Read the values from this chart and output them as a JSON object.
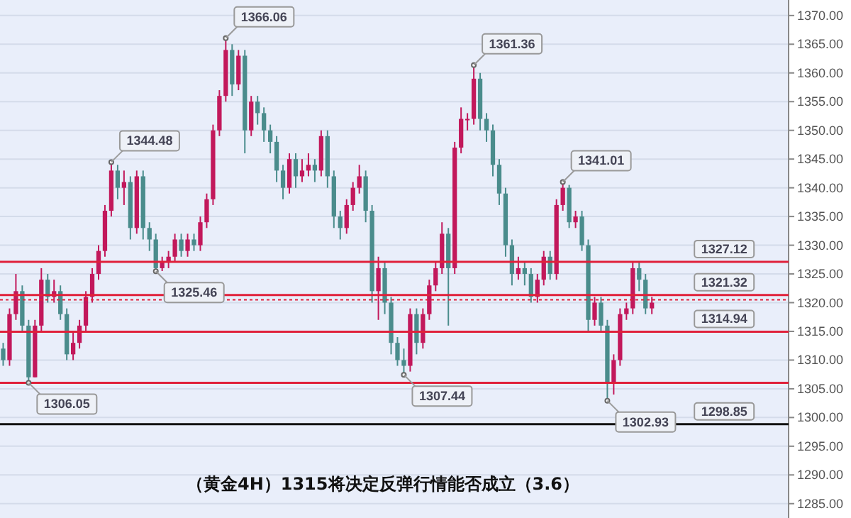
{
  "chart_data": {
    "type": "candlestick",
    "title": "（黄金4H）1315将决定反弹行情能否成立（3.6）",
    "categories": [
      null,
      null,
      null,
      null,
      null,
      null,
      null,
      null,
      null,
      null,
      null,
      null,
      null,
      null,
      null,
      null,
      null,
      null,
      null,
      null,
      null,
      null,
      null,
      null,
      null,
      null,
      null,
      null,
      null,
      null,
      null,
      null,
      null,
      null,
      null,
      null,
      null,
      null,
      null,
      null,
      null,
      null,
      null,
      null,
      null,
      null,
      null,
      null,
      null,
      null,
      null,
      null,
      null,
      null,
      null,
      null,
      null,
      null,
      null,
      null,
      null,
      null,
      null,
      null,
      null,
      null,
      null,
      null,
      null,
      null,
      null,
      null,
      null,
      null,
      null,
      null,
      null,
      null,
      null,
      null,
      null,
      null,
      null,
      null,
      null,
      null,
      null,
      null,
      null,
      null,
      null,
      null,
      null,
      null,
      null,
      null,
      null,
      null,
      null,
      null,
      null,
      null,
      null,
      null,
      null,
      null,
      null,
      null,
      null,
      null,
      null,
      null,
      null,
      null,
      null,
      null,
      null,
      null,
      null,
      null,
      null,
      null,
      null,
      null
    ],
    "ohlc": [
      [
        1312,
        1313,
        1309,
        1310
      ],
      [
        1310,
        1319,
        1309,
        1318
      ],
      [
        1318,
        1325,
        1317,
        1322
      ],
      [
        1322,
        1323,
        1315,
        1316
      ],
      [
        1316,
        1317,
        1306.05,
        1307
      ],
      [
        1307,
        1317,
        1307,
        1316
      ],
      [
        1316,
        1326,
        1315,
        1324
      ],
      [
        1324,
        1325,
        1320,
        1321
      ],
      [
        1321,
        1324,
        1320,
        1322
      ],
      [
        1322,
        1323,
        1317,
        1318
      ],
      [
        1318,
        1319,
        1310,
        1311
      ],
      [
        1311,
        1315,
        1310,
        1313
      ],
      [
        1313,
        1317,
        1312,
        1316
      ],
      [
        1316,
        1322,
        1315,
        1321
      ],
      [
        1321,
        1326,
        1320,
        1325
      ],
      [
        1325,
        1330,
        1324,
        1329
      ],
      [
        1329,
        1337,
        1328,
        1336
      ],
      [
        1336,
        1344.48,
        1335,
        1343
      ],
      [
        1343,
        1344,
        1338,
        1340
      ],
      [
        1340,
        1343,
        1337,
        1341
      ],
      [
        1341,
        1342,
        1331,
        1333
      ],
      [
        1333,
        1343,
        1332,
        1342
      ],
      [
        1342,
        1343,
        1331,
        1333
      ],
      [
        1333,
        1334,
        1329,
        1331
      ],
      [
        1331,
        1332,
        1325.46,
        1326
      ],
      [
        1326,
        1328,
        1325.5,
        1327
      ],
      [
        1327,
        1329,
        1326,
        1328
      ],
      [
        1328,
        1332,
        1327,
        1331
      ],
      [
        1331,
        1332,
        1328,
        1329
      ],
      [
        1329,
        1332,
        1328,
        1331
      ],
      [
        1331,
        1332,
        1329,
        1330
      ],
      [
        1330,
        1335,
        1329,
        1334
      ],
      [
        1334,
        1339,
        1333,
        1338
      ],
      [
        1338,
        1351,
        1337,
        1350
      ],
      [
        1350,
        1357,
        1349,
        1356
      ],
      [
        1356,
        1366.06,
        1355,
        1364
      ],
      [
        1364,
        1365,
        1356,
        1358
      ],
      [
        1358,
        1364,
        1357,
        1363
      ],
      [
        1363,
        1364,
        1346,
        1350
      ],
      [
        1350,
        1356,
        1349,
        1355
      ],
      [
        1355,
        1356,
        1351,
        1353
      ],
      [
        1353,
        1354,
        1348,
        1350
      ],
      [
        1350,
        1351,
        1346,
        1348
      ],
      [
        1348,
        1349,
        1341,
        1343
      ],
      [
        1343,
        1344,
        1338,
        1340
      ],
      [
        1340,
        1346,
        1339,
        1345
      ],
      [
        1345,
        1346,
        1340,
        1342
      ],
      [
        1342,
        1345,
        1341,
        1343
      ],
      [
        1343,
        1346,
        1342,
        1344
      ],
      [
        1344,
        1345,
        1341,
        1343
      ],
      [
        1343,
        1350,
        1342,
        1349
      ],
      [
        1349,
        1350,
        1340,
        1342
      ],
      [
        1342,
        1343,
        1333,
        1335
      ],
      [
        1335,
        1336,
        1331,
        1333
      ],
      [
        1333,
        1338,
        1332,
        1337
      ],
      [
        1337,
        1341,
        1336,
        1340
      ],
      [
        1340,
        1344,
        1339,
        1342
      ],
      [
        1342,
        1343,
        1334,
        1336
      ],
      [
        1336,
        1337,
        1320,
        1322
      ],
      [
        1322,
        1328,
        1317,
        1326
      ],
      [
        1326,
        1327,
        1318,
        1320
      ],
      [
        1320,
        1321,
        1311,
        1313
      ],
      [
        1313,
        1314,
        1309,
        1310
      ],
      [
        1310,
        1312,
        1307.44,
        1309
      ],
      [
        1309,
        1319,
        1308,
        1318
      ],
      [
        1318,
        1319,
        1311,
        1313
      ],
      [
        1313,
        1319,
        1312,
        1318
      ],
      [
        1318,
        1324,
        1317,
        1323
      ],
      [
        1323,
        1327,
        1322,
        1326
      ],
      [
        1326,
        1334,
        1325,
        1332
      ],
      [
        1332,
        1333,
        1316,
        1326
      ],
      [
        1326,
        1348,
        1325,
        1347
      ],
      [
        1347,
        1354,
        1346,
        1352
      ],
      [
        1352,
        1353,
        1350,
        1352
      ],
      [
        1352,
        1361.36,
        1351,
        1359
      ],
      [
        1359,
        1360,
        1350,
        1352
      ],
      [
        1352,
        1353,
        1348,
        1350
      ],
      [
        1350,
        1351,
        1342,
        1344
      ],
      [
        1344,
        1345,
        1337,
        1339
      ],
      [
        1339,
        1340,
        1328,
        1330
      ],
      [
        1330,
        1331,
        1323,
        1325
      ],
      [
        1325,
        1328,
        1324,
        1326
      ],
      [
        1326,
        1327,
        1323,
        1325
      ],
      [
        1325,
        1326,
        1320,
        1321
      ],
      [
        1321,
        1325,
        1320,
        1324
      ],
      [
        1324,
        1329,
        1323,
        1328
      ],
      [
        1328,
        1329,
        1324,
        1325
      ],
      [
        1325,
        1338,
        1324,
        1337
      ],
      [
        1337,
        1341.01,
        1336,
        1340
      ],
      [
        1340,
        1340.5,
        1333,
        1334
      ],
      [
        1334,
        1336,
        1333,
        1335
      ],
      [
        1335,
        1336,
        1329,
        1330
      ],
      [
        1330,
        1331,
        1315,
        1317
      ],
      [
        1317,
        1321,
        1316,
        1320
      ],
      [
        1320,
        1321,
        1315,
        1316
      ],
      [
        1316,
        1317,
        1302.93,
        1306
      ],
      [
        1306,
        1311,
        1304,
        1310
      ],
      [
        1310,
        1319,
        1309,
        1318
      ],
      [
        1318,
        1320,
        1317,
        1319
      ],
      [
        1319,
        1327,
        1318,
        1326
      ],
      [
        1326,
        1327,
        1322,
        1324
      ],
      [
        1324,
        1325,
        1318,
        1319
      ],
      [
        1319,
        1321,
        1318,
        1320
      ],
      null,
      null,
      null,
      null,
      null,
      null,
      null,
      null,
      null,
      null,
      null,
      null,
      null,
      null,
      null,
      null,
      null,
      null,
      null,
      null,
      null
    ],
    "colors": [
      "#4a8c8c",
      "#c2185b",
      "#c2185b",
      "#4a8c8c",
      "#4a8c8c",
      "#c2185b",
      "#c2185b",
      "#4a8c8c",
      "#c2185b",
      "#4a8c8c",
      "#4a8c8c",
      "#c2185b",
      "#c2185b",
      "#c2185b",
      "#c2185b",
      "#c2185b",
      "#c2185b",
      "#c2185b",
      "#4a8c8c",
      "#c2185b",
      "#4a8c8c",
      "#c2185b",
      "#4a8c8c",
      "#4a8c8c",
      "#4a8c8c",
      "#c2185b",
      "#c2185b",
      "#c2185b",
      "#4a8c8c",
      "#c2185b",
      "#4a8c8c",
      "#c2185b",
      "#c2185b",
      "#c2185b",
      "#c2185b",
      "#c2185b",
      "#4a8c8c",
      "#c2185b",
      "#4a8c8c",
      "#c2185b",
      "#4a8c8c",
      "#4a8c8c",
      "#4a8c8c",
      "#4a8c8c",
      "#4a8c8c",
      "#c2185b",
      "#4a8c8c",
      "#c2185b",
      "#c2185b",
      "#4a8c8c",
      "#c2185b",
      "#4a8c8c",
      "#4a8c8c",
      "#4a8c8c",
      "#c2185b",
      "#c2185b",
      "#c2185b",
      "#4a8c8c",
      "#4a8c8c",
      "#c2185b",
      "#4a8c8c",
      "#4a8c8c",
      "#4a8c8c",
      "#4a8c8c",
      "#c2185b",
      "#4a8c8c",
      "#c2185b",
      "#c2185b",
      "#c2185b",
      "#c2185b",
      "#4a8c8c",
      "#c2185b",
      "#c2185b",
      "#c2185b",
      "#c2185b",
      "#4a8c8c",
      "#4a8c8c",
      "#4a8c8c",
      "#4a8c8c",
      "#4a8c8c",
      "#4a8c8c",
      "#c2185b",
      "#4a8c8c",
      "#4a8c8c",
      "#c2185b",
      "#c2185b",
      "#4a8c8c",
      "#c2185b",
      "#c2185b",
      "#4a8c8c",
      "#c2185b",
      "#4a8c8c",
      "#4a8c8c",
      "#c2185b",
      "#4a8c8c",
      "#4a8c8c",
      "#c2185b",
      "#c2185b",
      "#c2185b",
      "#c2185b",
      "#4a8c8c",
      "#4a8c8c",
      "#c2185b",
      null,
      null,
      null,
      null,
      null,
      null,
      null,
      null,
      null,
      null,
      null,
      null,
      null,
      null,
      null,
      null,
      null,
      null,
      null,
      null,
      null
    ],
    "value_labels": [
      null,
      null,
      null,
      null,
      "1306.05",
      null,
      null,
      null,
      null,
      null,
      null,
      null,
      null,
      null,
      null,
      null,
      null,
      "1344.48",
      null,
      null,
      null,
      null,
      null,
      null,
      "1325.46",
      null,
      null,
      null,
      null,
      null,
      null,
      null,
      null,
      null,
      null,
      "1366.06",
      null,
      null,
      null,
      null,
      null,
      null,
      null,
      null,
      null,
      null,
      null,
      null,
      null,
      null,
      null,
      null,
      null,
      null,
      null,
      null,
      null,
      null,
      null,
      null,
      null,
      null,
      null,
      "1307.44",
      null,
      null,
      null,
      null,
      null,
      null,
      null,
      null,
      null,
      null,
      "1361.36",
      null,
      null,
      null,
      null,
      null,
      null,
      null,
      null,
      null,
      null,
      null,
      null,
      null,
      "1341.01",
      null,
      null,
      null,
      null,
      null,
      null,
      "1302.93",
      null,
      null,
      null,
      null,
      null,
      null,
      null,
      null,
      null,
      null,
      null,
      null,
      null,
      null,
      null,
      null,
      null,
      null,
      null,
      null,
      null,
      null,
      null,
      null,
      null,
      null,
      null,
      null
    ],
    "ylim": [
      1282.5,
      1372.7
    ],
    "yticks": [
      {
        "value": 1285,
        "label": "1285.00"
      },
      {
        "value": 1290,
        "label": "1290.00"
      },
      {
        "value": 1295,
        "label": "1295.00"
      },
      {
        "value": 1300,
        "label": "1300.00"
      },
      {
        "value": 1305,
        "label": "1305.00"
      },
      {
        "value": 1310,
        "label": "1310.00"
      },
      {
        "value": 1315,
        "label": "1315.00"
      },
      {
        "value": 1320,
        "label": "1320.00"
      },
      {
        "value": 1325,
        "label": "1325.00"
      },
      {
        "value": 1330,
        "label": "1330.00"
      },
      {
        "value": 1335,
        "label": "1335.00"
      },
      {
        "value": 1340,
        "label": "1340.00"
      },
      {
        "value": 1345,
        "label": "1345.00"
      },
      {
        "value": 1350,
        "label": "1350.00"
      },
      {
        "value": 1355,
        "label": "1355.00"
      },
      {
        "value": 1360,
        "label": "1360.00"
      },
      {
        "value": 1365,
        "label": "1365.00"
      },
      {
        "value": 1370,
        "label": "1370.00"
      }
    ],
    "tick_labels": "y",
    "grid": "y",
    "ref_lines": [
      {
        "axis": "y",
        "value": 1306.05,
        "color": "#e0203a"
      },
      {
        "axis": "y",
        "value": 1298.85,
        "label": "1298.85",
        "color": "#111111"
      },
      {
        "axis": "y",
        "value": 1327.12,
        "label": "1327.12",
        "color": "#e0203a"
      },
      {
        "axis": "y",
        "value": 1321.32,
        "label": "1321.32",
        "color": "#e0203a"
      },
      {
        "axis": "y",
        "value": 1314.94,
        "label": "1314.94",
        "color": "#e0203a"
      },
      {
        "axis": "y",
        "value": 1320.5,
        "color": "#e0203a",
        "line_style": "dotted"
      }
    ]
  }
}
